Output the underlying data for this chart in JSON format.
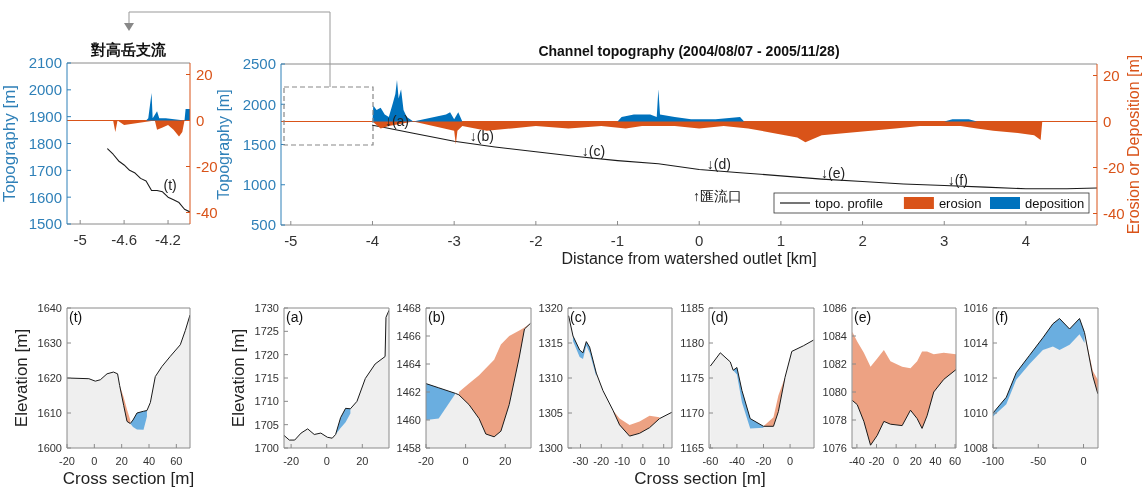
{
  "chart_data": [
    {
      "type": "area",
      "title": "對高岳支流",
      "ylabel": "Topography [m]",
      "xlim": [
        -5.12,
        -4.0
      ],
      "xticks": [
        -5,
        -4.6,
        -4.2
      ],
      "ylim": [
        1500,
        2100
      ],
      "yticks": [
        1500,
        1600,
        1700,
        1800,
        1900,
        2000,
        2100
      ],
      "y2lim": [
        -45,
        25
      ],
      "y2ticks": [
        -40,
        -20,
        0,
        20
      ],
      "ref_lines": [
        {
          "axis": "y2",
          "value": 0,
          "color": "#d95319"
        }
      ],
      "annotations": [
        {
          "text": "(t)",
          "x": -4.25,
          "y": 1625
        }
      ],
      "series": [
        {
          "type": "line",
          "color": "#1a1a1a",
          "x": [
            -4.75,
            -4.7,
            -4.65,
            -4.6,
            -4.55,
            -4.5,
            -4.45,
            -4.4,
            -4.35,
            -4.3,
            -4.25,
            -4.2,
            -4.15,
            -4.1,
            -4.05,
            -4.0
          ],
          "values": [
            1780,
            1760,
            1735,
            1720,
            1700,
            1690,
            1670,
            1660,
            1625,
            1625,
            1620,
            1600,
            1590,
            1580,
            1555,
            1545
          ]
        },
        {
          "axis": "y2",
          "color": "#d95319",
          "x": [
            -4.7,
            -4.68,
            -4.66,
            -4.6,
            -4.32,
            -4.3,
            -4.25,
            -4.2,
            -4.15,
            -4.1,
            -4.07,
            -4.05
          ],
          "values": [
            0,
            -5,
            0,
            -2,
            0,
            -4,
            -3,
            -2,
            -4,
            -7,
            -5,
            0
          ]
        },
        {
          "axis": "y2",
          "color": "#0072bd",
          "x": [
            -4.4,
            -4.38,
            -4.35,
            -4.34,
            -4.3,
            -4.28,
            -4.22,
            -4.05,
            -4.04,
            -4.0
          ],
          "values": [
            0,
            1,
            12,
            1,
            4,
            1,
            1,
            0,
            5,
            5
          ]
        }
      ]
    },
    {
      "type": "area",
      "title": "Channel topography (2004/08/07 - 2005/11/28)",
      "xlabel": "Distance from watershed outlet [km]",
      "ylabel": "Topography [m]",
      "y2label": "Erosion or Deposition [m]",
      "xlim": [
        -5.12,
        4.87
      ],
      "xticks": [
        -5,
        -4,
        -3,
        -2,
        -1,
        0,
        1,
        2,
        3,
        4
      ],
      "ylim": [
        500,
        2500
      ],
      "yticks": [
        500,
        1000,
        1500,
        2000,
        2500
      ],
      "y2lim": [
        -45,
        25
      ],
      "y2ticks": [
        -40,
        -20,
        0,
        20
      ],
      "legend": "bottom right",
      "ref_lines": [
        {
          "axis": "y2",
          "value": 0,
          "color": "#d95319"
        }
      ],
      "annotations": [
        {
          "text": "↓(a)",
          "x": -3.86,
          "y": 1730
        },
        {
          "text": "↓(b)",
          "x": -2.82,
          "y": 1540
        },
        {
          "text": "↓(c)",
          "x": -1.45,
          "y": 1360
        },
        {
          "text": "↓(d)",
          "x": 0.08,
          "y": 1190
        },
        "↑匯流口",
        {
          "text": "↓(e)",
          "x": 1.48,
          "y": 1080
        },
        {
          "text": "↓(f)",
          "x": 3.03,
          "y": 1000
        }
      ],
      "series": [
        {
          "name": "topo. profile",
          "type": "line",
          "color": "#1a1a1a",
          "x": [
            -4.0,
            -3.9,
            -3.5,
            -3,
            -2.5,
            -2,
            -1.5,
            -1,
            -0.5,
            0,
            0.5,
            1,
            1.5,
            2,
            2.5,
            3,
            3.5,
            4,
            4.5,
            4.87
          ],
          "values": [
            1740,
            1720,
            1640,
            1540,
            1470,
            1410,
            1350,
            1300,
            1260,
            1190,
            1150,
            1110,
            1070,
            1040,
            1010,
            990,
            970,
            950,
            950,
            960
          ]
        },
        {
          "name": "erosion",
          "axis": "y2",
          "color": "#d95319",
          "x": [
            -4.0,
            -3.9,
            -3.8,
            -3.5,
            -3.0,
            -2.98,
            -2.96,
            -2.9,
            -2.6,
            -2.3,
            -2,
            -1.6,
            -1.2,
            -0.9,
            -0.7,
            -0.3,
            0,
            0.3,
            0.6,
            0.9,
            1.2,
            1.3,
            1.5,
            1.8,
            2.1,
            2.4,
            2.7,
            3.2,
            3.4,
            3.6,
            3.9,
            4.1,
            4.18,
            4.2,
            4.87
          ],
          "values": [
            0,
            -3,
            -2,
            0,
            -4,
            -10,
            -4,
            -2,
            -4,
            -3,
            -2,
            -3,
            -2,
            -3,
            -2,
            -2,
            -3,
            -2,
            -3,
            -5,
            -7,
            -9,
            -6,
            -5,
            -4,
            -3,
            -2,
            -2,
            -3,
            -4,
            -5,
            -6,
            -8,
            0,
            0
          ]
        },
        {
          "name": "deposition",
          "axis": "y2",
          "color": "#0072bd",
          "x": [
            -4.0,
            -3.99,
            -3.95,
            -3.9,
            -3.85,
            -3.8,
            -3.75,
            -3.72,
            -3.7,
            -3.68,
            -3.65,
            -3.62,
            -3.58,
            -3.5,
            -3.1,
            -3.05,
            -3.0,
            -2.95,
            -2.9,
            -1.0,
            -0.95,
            -0.8,
            -0.6,
            -0.52,
            -0.5,
            -0.48,
            -0.3,
            -0.1,
            0.2,
            0.5,
            0.55,
            3.0,
            3.1,
            3.3,
            3.4,
            4.87
          ],
          "values": [
            0,
            7,
            5,
            6,
            3,
            2,
            8,
            12,
            18,
            10,
            14,
            5,
            2,
            0,
            3,
            4,
            1,
            4,
            0,
            0,
            2,
            3,
            3,
            2,
            14,
            3,
            2,
            1,
            1,
            2,
            0,
            0,
            1,
            1,
            0,
            0
          ]
        }
      ]
    },
    {
      "type": "area",
      "annotations": [
        "(t)"
      ],
      "ylabel": "Elevation [m]",
      "xlabel": "Cross section [m]",
      "xlim": [
        -20,
        70
      ],
      "xticks": [
        -20,
        0,
        20,
        40,
        60
      ],
      "ylim": [
        1600,
        1640
      ],
      "yticks": [
        1600,
        1610,
        1620,
        1630,
        1640
      ],
      "x": [
        -20,
        -4,
        0.7,
        4.4,
        9.3,
        14,
        17,
        18.5,
        21.5,
        23.9,
        26.3,
        28.3,
        31.2,
        36,
        38.5,
        41,
        44.6,
        49.5,
        55.6,
        62.9,
        66.6,
        70
      ],
      "series": [
        {
          "color": "#efefef",
          "values": [
            1620,
            1619.8,
            1619.1,
            1619.5,
            1621.2,
            1621.7,
            1621.2,
            1617.9,
            1612.1,
            1607.6,
            1607,
            1608,
            1610,
            1610.5,
            1610.7,
            1613,
            1620.4,
            1623.3,
            1626.2,
            1629.5,
            1633.6,
            1638
          ]
        },
        {
          "type": "line",
          "color": "#eda283",
          "values": [
            null,
            null,
            null,
            null,
            null,
            null,
            null,
            null,
            null,
            null,
            null,
            null,
            null,
            null,
            null,
            null,
            null,
            null,
            null,
            null,
            null,
            null
          ],
          "lower": [
            null,
            null,
            null,
            null,
            null,
            null,
            null,
            1617.9,
            1612.1,
            1607.6,
            1607,
            null,
            null,
            null,
            null,
            null,
            null,
            null,
            null,
            null,
            null,
            null
          ],
          "upper": [
            null,
            null,
            null,
            null,
            null,
            null,
            null,
            1617.9,
            1614.5,
            1611,
            1608,
            null,
            null,
            null,
            null,
            null,
            null,
            null,
            null,
            null,
            null,
            null
          ]
        },
        {
          "type": "line",
          "color": "#6aaee0",
          "values": [
            null,
            null,
            null,
            null,
            null,
            null,
            null,
            null,
            null,
            null,
            null,
            null,
            null,
            null,
            null,
            null,
            null,
            null,
            null,
            null,
            null,
            null
          ],
          "lower": [
            null,
            null,
            null,
            null,
            null,
            null,
            null,
            null,
            null,
            null,
            1607,
            1606,
            1605.3,
            1605.2,
            1609,
            null,
            null,
            null,
            null,
            null,
            null,
            null
          ],
          "upper": [
            null,
            null,
            null,
            null,
            null,
            null,
            null,
            null,
            null,
            null,
            1607,
            1608,
            1610,
            1610.5,
            1610.7,
            null,
            null,
            null,
            null,
            null,
            null,
            null
          ]
        }
      ]
    },
    {
      "type": "area",
      "annotations": [
        "(a)"
      ],
      "ylabel": "Elevation [m]",
      "xlim": [
        -24,
        35
      ],
      "xticks": [
        -20,
        0,
        20
      ],
      "ylim": [
        1700,
        1730
      ],
      "yticks": [
        1700,
        1705,
        1710,
        1715,
        1720,
        1725,
        1730
      ],
      "x": [
        -24,
        -21,
        -18,
        -14.4,
        -10.7,
        -7,
        -3.3,
        0.4,
        3.1,
        5,
        7.8,
        10.6,
        13.3,
        17,
        21.7,
        27.2,
        32.8,
        33.3,
        35
      ],
      "series": [
        {
          "color": "#efefef",
          "values": [
            1702.7,
            1701.7,
            1701.7,
            1703.2,
            1704.1,
            1702.9,
            1703.2,
            1702.3,
            1702.1,
            1702.9,
            1706.5,
            1708.5,
            1708.4,
            1710,
            1714.9,
            1718,
            1719.6,
            1728,
            1729.5
          ]
        },
        {
          "type": "line",
          "color": "#6aaee0",
          "values": [
            null,
            null,
            null,
            null,
            null,
            null,
            null,
            null,
            null,
            null,
            null,
            null,
            null,
            null,
            null,
            null,
            null,
            null,
            null
          ],
          "lower": [
            null,
            null,
            null,
            null,
            null,
            null,
            null,
            null,
            null,
            1702.9,
            1704.3,
            1705.5,
            1707.4,
            null,
            null,
            null,
            null,
            null,
            null
          ],
          "upper": [
            null,
            null,
            null,
            null,
            null,
            null,
            null,
            null,
            null,
            1702.9,
            1706.5,
            1708.5,
            1708.4,
            null,
            null,
            null,
            null,
            null,
            null
          ]
        }
      ]
    },
    {
      "type": "area",
      "annotations": [
        "(b)"
      ],
      "xlim": [
        -20,
        33
      ],
      "xticks": [
        -20,
        0,
        20
      ],
      "ylim": [
        1458,
        1468
      ],
      "yticks": [
        1458,
        1460,
        1462,
        1464,
        1466,
        1468
      ],
      "x": [
        -20,
        -13.6,
        -5.1,
        -3.4,
        1.7,
        6.8,
        10.2,
        14.4,
        17.8,
        22,
        27.1,
        29.7,
        32.7
      ],
      "series": [
        {
          "color": "#efefef",
          "values": [
            1462.6,
            1462.3,
            1461.9,
            1461.8,
            1461.1,
            1460.1,
            1459,
            1458.8,
            1459.2,
            1461.1,
            1464.5,
            1466.5,
            1466.9
          ]
        },
        {
          "type": "line",
          "color": "#6aaee0",
          "values": [
            null,
            null,
            null,
            null,
            null,
            null,
            null,
            null,
            null,
            null,
            null,
            null,
            null
          ],
          "lower": [
            1460,
            1460.1,
            1461.9,
            null,
            null,
            null,
            null,
            null,
            null,
            null,
            null,
            null,
            null
          ],
          "upper": [
            1462.6,
            1462.3,
            1461.9,
            null,
            null,
            null,
            null,
            null,
            null,
            null,
            null,
            null,
            null
          ]
        },
        {
          "type": "line",
          "color": "#eda283",
          "values": [
            null,
            null,
            null,
            null,
            null,
            null,
            null,
            null,
            null,
            null,
            null,
            null,
            null
          ],
          "lower": [
            null,
            null,
            null,
            1461.8,
            1461.1,
            1460.1,
            1459,
            1458.8,
            1459.2,
            1461.1,
            1464.5,
            1466.5,
            1466.9
          ],
          "upper": [
            null,
            null,
            null,
            1462,
            1462.6,
            1463.2,
            1463.7,
            1464.3,
            1465.4,
            1466,
            1466.4,
            1466.6,
            1466.9
          ]
        }
      ]
    },
    {
      "type": "area",
      "annotations": [
        "(c)"
      ],
      "xlabel": "Cross section [m]",
      "xlim": [
        -36,
        14
      ],
      "xticks": [
        -30,
        -20,
        -10,
        0,
        10
      ],
      "ylim": [
        1300,
        1320
      ],
      "yticks": [
        1300,
        1305,
        1310,
        1315,
        1320
      ],
      "x": [
        -35.7,
        -33.6,
        -30.4,
        -28.8,
        -27.2,
        -25.6,
        -22.4,
        -19.2,
        -14.4,
        -11.2,
        -6.4,
        -1.6,
        3.2,
        8,
        13.9
      ],
      "series": [
        {
          "color": "#efefef",
          "values": [
            1318.9,
            1316,
            1314,
            1313.6,
            1315.2,
            1314.4,
            1310.7,
            1308.2,
            1305.4,
            1303.3,
            1301.7,
            1302.1,
            1302.9,
            1304.2,
            1305.1
          ]
        },
        {
          "type": "line",
          "color": "#6aaee0",
          "values": [
            null,
            null,
            null,
            null,
            null,
            null,
            null,
            null,
            null,
            null,
            null,
            null,
            null,
            null,
            null
          ],
          "lower": [
            null,
            1315.3,
            1313,
            1312.7,
            1314.6,
            1313.6,
            1310.2,
            null,
            null,
            null,
            null,
            null,
            null,
            null,
            null
          ],
          "upper": [
            null,
            1316,
            1314,
            1313.6,
            1315.2,
            1314.4,
            1310.7,
            null,
            null,
            null,
            null,
            null,
            null,
            null,
            null
          ]
        },
        {
          "type": "line",
          "color": "#eda283",
          "values": [
            null,
            null,
            null,
            null,
            null,
            null,
            null,
            null,
            null,
            null,
            null,
            null,
            null,
            null,
            null
          ],
          "lower": [
            null,
            null,
            null,
            null,
            null,
            null,
            null,
            null,
            1305.4,
            1303.3,
            1301.7,
            1302.1,
            1302.9,
            1304.2,
            null
          ],
          "upper": [
            null,
            null,
            null,
            null,
            null,
            null,
            null,
            null,
            1305.4,
            1304.2,
            1303.3,
            1303.8,
            1304.6,
            1304.4,
            null
          ]
        }
      ]
    },
    {
      "type": "area",
      "annotations": [
        "(d)"
      ],
      "xlim": [
        -61,
        18
      ],
      "xticks": [
        -60,
        -40,
        -20,
        0
      ],
      "ylim": [
        1165,
        1185
      ],
      "yticks": [
        1165,
        1170,
        1175,
        1180,
        1185
      ],
      "x": [
        -60,
        -52.5,
        -45,
        -42.8,
        -40,
        -36.2,
        -30,
        -20,
        -12.5,
        -8.8,
        -3.8,
        1.3,
        10,
        17.5
      ],
      "series": [
        {
          "color": "#efefef",
          "values": [
            1176.7,
            1178.6,
            1177.3,
            1176.1,
            1176.5,
            1173.2,
            1169.2,
            1168.1,
            1168.1,
            1170.2,
            1175.1,
            1178.8,
            1179.6,
            1180.4
          ]
        },
        {
          "type": "line",
          "color": "#6aaee0",
          "values": [
            null,
            null,
            null,
            null,
            null,
            null,
            null,
            null,
            null,
            null,
            null,
            null,
            null,
            null
          ],
          "lower": [
            null,
            null,
            null,
            1176.1,
            1175.5,
            1171.5,
            1167.8,
            1167.9,
            null,
            null,
            null,
            null,
            null,
            null
          ],
          "upper": [
            null,
            null,
            null,
            1176.1,
            1176.5,
            1173.2,
            1169.2,
            1168.1,
            null,
            null,
            null,
            null,
            null,
            null
          ]
        },
        {
          "type": "line",
          "color": "#eda283",
          "values": [
            null,
            null,
            null,
            null,
            null,
            null,
            null,
            null,
            null,
            null,
            null,
            null,
            null,
            null
          ],
          "lower": [
            null,
            null,
            null,
            null,
            null,
            null,
            null,
            1168.1,
            1168.1,
            1170.2,
            1175.1,
            null,
            null,
            null
          ],
          "upper": [
            null,
            null,
            null,
            null,
            null,
            null,
            null,
            1168.1,
            1169.4,
            1172.5,
            1175.1,
            null,
            null,
            null
          ]
        }
      ]
    },
    {
      "type": "area",
      "annotations": [
        "(e)"
      ],
      "xlim": [
        -45,
        61
      ],
      "xticks": [
        -40,
        -20,
        0,
        20,
        40,
        60
      ],
      "ylim": [
        1076,
        1086
      ],
      "yticks": [
        1076,
        1078,
        1080,
        1082,
        1084,
        1086
      ],
      "x": [
        -44.7,
        -39.7,
        -32.9,
        -26.1,
        -19.3,
        -12.5,
        -5.8,
        6.1,
        14.6,
        21.4,
        26.4,
        31.5,
        38.3,
        48.5,
        61
      ],
      "series": [
        {
          "color": "#efefef",
          "values": [
            1079.4,
            1079.1,
            1077.9,
            1076.2,
            1076.9,
            1077.9,
            1077.7,
            1077.6,
            1078.7,
            1078.1,
            1077.4,
            1078.3,
            1080,
            1080.9,
            1081.6
          ]
        },
        {
          "type": "line",
          "color": "#eda283",
          "values": [
            null,
            null,
            null,
            null,
            null,
            null,
            null,
            null,
            null,
            null,
            null,
            null,
            null,
            null,
            null
          ],
          "lower": [
            1079.4,
            1079.1,
            1077.9,
            1076.2,
            1076.9,
            1077.9,
            1077.7,
            1077.6,
            1078.7,
            1078.1,
            1077.4,
            1078.3,
            1080,
            1080.9,
            1081.6
          ],
          "upper": [
            1084.3,
            1083.6,
            1082.8,
            1081.8,
            1082.4,
            1083,
            1082.2,
            1081.8,
            1081.7,
            1082.2,
            1082.9,
            1082.9,
            1082.7,
            1082.8,
            1082.7
          ]
        }
      ]
    },
    {
      "type": "area",
      "annotations": [
        "(f)"
      ],
      "xlim": [
        -100,
        16
      ],
      "xticks": [
        -100,
        -50,
        0
      ],
      "ylim": [
        1008,
        1016
      ],
      "yticks": [
        1008,
        1010,
        1012,
        1014,
        1016
      ],
      "x": [
        -100,
        -85.3,
        -74.3,
        -59.6,
        -44.9,
        -33.8,
        -26.5,
        -15.4,
        -4.4,
        1.1,
        10.3,
        15.8
      ],
      "series": [
        {
          "color": "#efefef",
          "values": [
            1010,
            1010.9,
            1012.3,
            1013.3,
            1014.3,
            1015.1,
            1015.4,
            1014.8,
            1015.4,
            1014.6,
            1012.1,
            1011.1
          ]
        },
        {
          "type": "line",
          "color": "#6aaee0",
          "values": [
            null,
            null,
            null,
            null,
            null,
            null,
            null,
            null,
            null,
            null,
            null,
            null
          ],
          "lower": [
            1009.8,
            1010.5,
            1011.9,
            1012.8,
            1013.6,
            1013.8,
            1013.6,
            1013.9,
            1014.5,
            1014,
            null,
            null
          ],
          "upper": [
            1010,
            1010.9,
            1012.3,
            1013.3,
            1014.3,
            1015.1,
            1015.4,
            1014.8,
            1015.4,
            1014.6,
            null,
            null
          ]
        },
        {
          "type": "line",
          "color": "#eda283",
          "values": [
            null,
            null,
            null,
            null,
            null,
            null,
            null,
            null,
            null,
            null,
            null,
            null
          ],
          "lower": [
            null,
            null,
            null,
            null,
            null,
            null,
            null,
            null,
            null,
            1014.6,
            1012.1,
            1011.1
          ],
          "upper": [
            null,
            null,
            null,
            null,
            null,
            null,
            null,
            null,
            null,
            1014.6,
            1012.4,
            1011.9
          ]
        }
      ]
    }
  ]
}
